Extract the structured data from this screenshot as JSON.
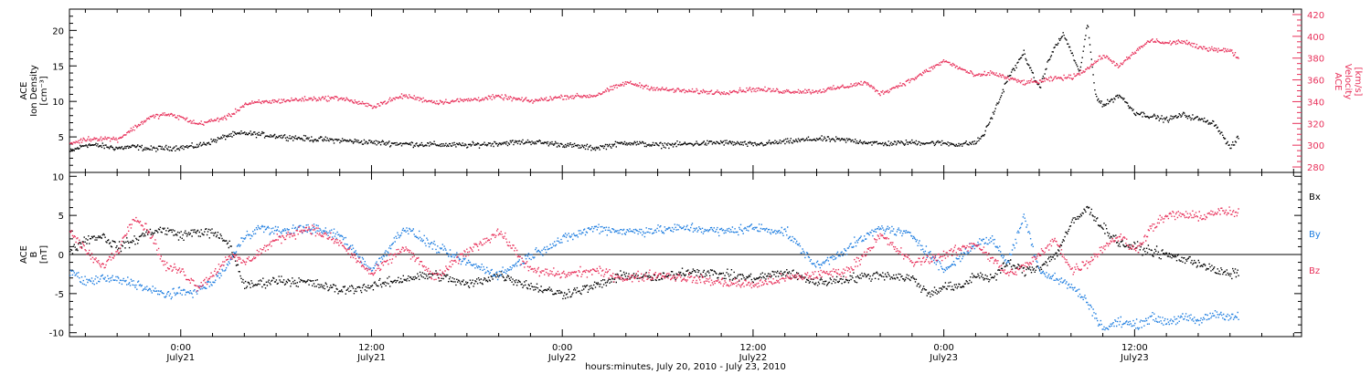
{
  "chart_data": [
    {
      "type": "scatter",
      "x_unit": "hours since 2010-07-20 00:00",
      "x_range": [
        17.0,
        94.5
      ],
      "left_axis": {
        "label": [
          "ACE",
          "Ion Density",
          "[cm⁻³]"
        ],
        "ylim": [
          0,
          23
        ],
        "ticks": [
          5,
          10,
          15,
          20
        ],
        "color": "#000000"
      },
      "right_axis": {
        "label": [
          "ACE",
          "Velocity",
          "[km/s]"
        ],
        "ylim": [
          275,
          425
        ],
        "ticks": [
          280,
          300,
          320,
          340,
          360,
          380,
          400,
          420
        ],
        "color": "#e8305a"
      },
      "series": [
        {
          "axis": "left",
          "color": "#000000",
          "x": [
            17.0,
            18.0,
            19.0,
            20.0,
            21.0,
            22.0,
            23.0,
            24.0,
            25.0,
            26.0,
            27.0,
            28.0,
            29.0,
            30.0,
            32.0,
            34.0,
            36.0,
            38.0,
            40.0,
            42.0,
            44.0,
            46.0,
            48.0,
            50.0,
            52.0,
            54.0,
            56.0,
            58.0,
            60.0,
            62.0,
            64.0,
            66.0,
            68.0,
            70.0,
            72.0,
            73.0,
            74.0,
            74.5,
            75.0,
            75.5,
            76.0,
            76.5,
            77.0,
            77.5,
            78.0,
            78.5,
            79.0,
            79.5,
            80.0,
            80.5,
            81.0,
            81.5,
            82.0,
            83.0,
            84.0,
            85.0,
            86.0,
            87.0,
            88.0,
            89.0,
            90.0,
            90.5
          ],
          "y": [
            3.0,
            4.0,
            3.8,
            3.5,
            3.7,
            3.4,
            3.5,
            3.6,
            3.8,
            4.5,
            5.3,
            5.6,
            5.4,
            5.2,
            4.8,
            4.6,
            4.3,
            4.1,
            4.0,
            3.9,
            4.2,
            4.4,
            4.0,
            3.5,
            4.3,
            3.9,
            4.1,
            4.3,
            4.0,
            4.4,
            4.8,
            4.6,
            4.1,
            4.3,
            4.2,
            4.0,
            4.3,
            5.5,
            8.0,
            10.5,
            13.5,
            15.0,
            17.0,
            14.0,
            12.0,
            15.5,
            18.0,
            19.5,
            17.0,
            14.0,
            21.0,
            11.0,
            9.5,
            11.0,
            8.5,
            8.0,
            7.5,
            8.2,
            7.6,
            7.0,
            3.5,
            5.0
          ]
        },
        {
          "axis": "right",
          "color": "#e8305a",
          "x": [
            17.0,
            18.0,
            19.0,
            20.0,
            21.0,
            22.0,
            23.0,
            24.0,
            25.0,
            26.0,
            27.0,
            28.0,
            29.0,
            30.0,
            32.0,
            34.0,
            36.0,
            38.0,
            40.0,
            42.0,
            44.0,
            46.0,
            48.0,
            50.0,
            52.0,
            54.0,
            56.0,
            58.0,
            60.0,
            62.0,
            64.0,
            66.0,
            67.0,
            68.0,
            70.0,
            72.0,
            74.0,
            75.0,
            76.0,
            77.0,
            78.0,
            79.0,
            80.0,
            81.0,
            82.0,
            83.0,
            84.0,
            84.5,
            85.0,
            86.0,
            87.0,
            88.0,
            89.0,
            90.0,
            90.5
          ],
          "y": [
            302,
            306,
            307,
            306,
            316,
            326,
            329,
            326,
            320,
            323,
            327,
            338,
            340,
            341,
            343,
            344,
            336,
            346,
            340,
            342,
            345,
            341,
            345,
            346,
            358,
            352,
            350,
            349,
            352,
            350,
            350,
            355,
            358,
            348,
            361,
            378,
            364,
            367,
            362,
            358,
            359,
            362,
            363,
            371,
            383,
            373,
            386,
            392,
            397,
            394,
            396,
            390,
            389,
            387,
            381
          ]
        }
      ]
    },
    {
      "type": "scatter",
      "x_unit": "hours since 2010-07-20 00:00",
      "x_range": [
        17.0,
        94.5
      ],
      "ylabel": [
        "ACE",
        "B",
        "[nT]"
      ],
      "ylim": [
        -10.5,
        10.5
      ],
      "yticks": [
        -10,
        -5,
        0,
        5,
        10
      ],
      "zero_line": true,
      "legend": {
        "placement": "right",
        "entries": [
          "Bx",
          "By",
          "Bz"
        ]
      },
      "series": [
        {
          "name": "Bx",
          "color": "#000000",
          "x": [
            17.0,
            18.0,
            19.0,
            20.0,
            21.0,
            22.0,
            23.0,
            24.0,
            25.0,
            26.0,
            27.0,
            28.0,
            30.0,
            32.0,
            34.0,
            36.0,
            38.0,
            40.0,
            42.0,
            44.0,
            46.0,
            48.0,
            50.0,
            52.0,
            54.0,
            56.0,
            58.0,
            60.0,
            62.0,
            64.0,
            66.0,
            68.0,
            70.0,
            71.0,
            72.0,
            73.0,
            74.0,
            75.0,
            76.0,
            77.0,
            78.0,
            79.0,
            80.0,
            81.0,
            82.0,
            83.0,
            84.0,
            85.0,
            86.0,
            87.0,
            88.0,
            89.0,
            90.0,
            90.5
          ],
          "y": [
            0.5,
            2.0,
            2.5,
            1.0,
            1.8,
            3.0,
            3.2,
            2.5,
            3.0,
            2.8,
            1.5,
            -4.0,
            -3.2,
            -3.5,
            -4.5,
            -4.0,
            -3.0,
            -2.5,
            -3.8,
            -2.5,
            -4.0,
            -5.0,
            -4.0,
            -2.5,
            -3.0,
            -2.0,
            -2.5,
            -3.0,
            -2.2,
            -3.5,
            -3.0,
            -2.5,
            -3.0,
            -5.0,
            -4.0,
            -4.2,
            -2.5,
            -3.0,
            -1.0,
            -2.0,
            -1.5,
            0.0,
            4.0,
            6.0,
            3.5,
            1.5,
            1.0,
            0.5,
            0.0,
            -0.5,
            -1.0,
            -2.0,
            -2.5,
            -2.2
          ]
        },
        {
          "name": "By",
          "color": "#1f7ee0",
          "x": [
            17.0,
            18.0,
            19.0,
            20.0,
            21.0,
            22.0,
            23.0,
            24.0,
            25.0,
            26.0,
            27.0,
            28.0,
            29.0,
            30.0,
            32.0,
            34.0,
            36.0,
            38.0,
            40.0,
            42.0,
            44.0,
            46.0,
            48.0,
            50.0,
            52.0,
            54.0,
            56.0,
            58.0,
            60.0,
            62.0,
            64.0,
            66.0,
            68.0,
            70.0,
            72.0,
            74.0,
            75.0,
            76.0,
            77.0,
            78.0,
            79.0,
            80.0,
            81.0,
            82.0,
            83.0,
            84.0,
            85.0,
            86.0,
            87.0,
            88.0,
            89.0,
            90.0,
            90.5
          ],
          "y": [
            -2.0,
            -3.5,
            -3.0,
            -3.2,
            -3.5,
            -4.5,
            -5.0,
            -4.8,
            -4.5,
            -3.5,
            -1.0,
            2.5,
            3.5,
            3.0,
            3.5,
            2.5,
            -2.0,
            3.5,
            1.0,
            -1.0,
            -2.5,
            0.0,
            2.0,
            3.5,
            3.0,
            3.2,
            3.5,
            3.0,
            3.5,
            3.0,
            -1.5,
            1.0,
            3.5,
            2.5,
            -2.0,
            1.5,
            2.0,
            -1.0,
            5.0,
            -2.0,
            -3.0,
            -4.0,
            -6.0,
            -9.5,
            -8.5,
            -9.0,
            -8.0,
            -8.5,
            -8.0,
            -8.5,
            -7.5,
            -7.8,
            -8.0
          ]
        },
        {
          "name": "Bz",
          "color": "#e8305a",
          "x": [
            17.0,
            18.0,
            19.0,
            20.0,
            21.0,
            22.0,
            23.0,
            24.0,
            25.0,
            26.0,
            27.0,
            28.0,
            29.0,
            30.0,
            32.0,
            34.0,
            36.0,
            38.0,
            40.0,
            42.0,
            44.0,
            46.0,
            48.0,
            50.0,
            52.0,
            54.0,
            56.0,
            58.0,
            60.0,
            62.0,
            64.0,
            66.0,
            68.0,
            70.0,
            72.0,
            74.0,
            76.0,
            77.0,
            78.0,
            79.0,
            80.0,
            81.0,
            82.0,
            83.0,
            84.0,
            85.0,
            86.0,
            87.0,
            88.0,
            89.0,
            90.0,
            90.5
          ],
          "y": [
            3.0,
            0.5,
            -1.5,
            0.5,
            5.0,
            3.0,
            -1.5,
            -2.0,
            -4.0,
            -2.5,
            0.0,
            -1.0,
            0.5,
            2.0,
            3.5,
            1.5,
            -2.5,
            1.0,
            -3.0,
            0.5,
            3.0,
            -2.0,
            -2.5,
            -2.0,
            -3.0,
            -2.5,
            -3.0,
            -3.5,
            -3.8,
            -3.0,
            -2.5,
            -2.0,
            2.5,
            -1.0,
            0.0,
            1.5,
            -2.5,
            -1.5,
            0.0,
            2.0,
            -2.0,
            -1.0,
            1.0,
            2.5,
            0.5,
            3.5,
            5.0,
            5.2,
            4.8,
            5.5,
            5.5,
            5.2
          ]
        }
      ]
    }
  ],
  "time_axis": {
    "ticks": [
      {
        "x": 24,
        "time": "0:00",
        "day": "July21"
      },
      {
        "x": 36,
        "time": "12:00",
        "day": "July21"
      },
      {
        "x": 48,
        "time": "0:00",
        "day": "July22"
      },
      {
        "x": 60,
        "time": "12:00",
        "day": "July22"
      },
      {
        "x": 72,
        "time": "0:00",
        "day": "July23"
      },
      {
        "x": 84,
        "time": "12:00",
        "day": "July23"
      }
    ],
    "label": "hours:minutes, July 20, 2010 - July 23, 2010"
  }
}
